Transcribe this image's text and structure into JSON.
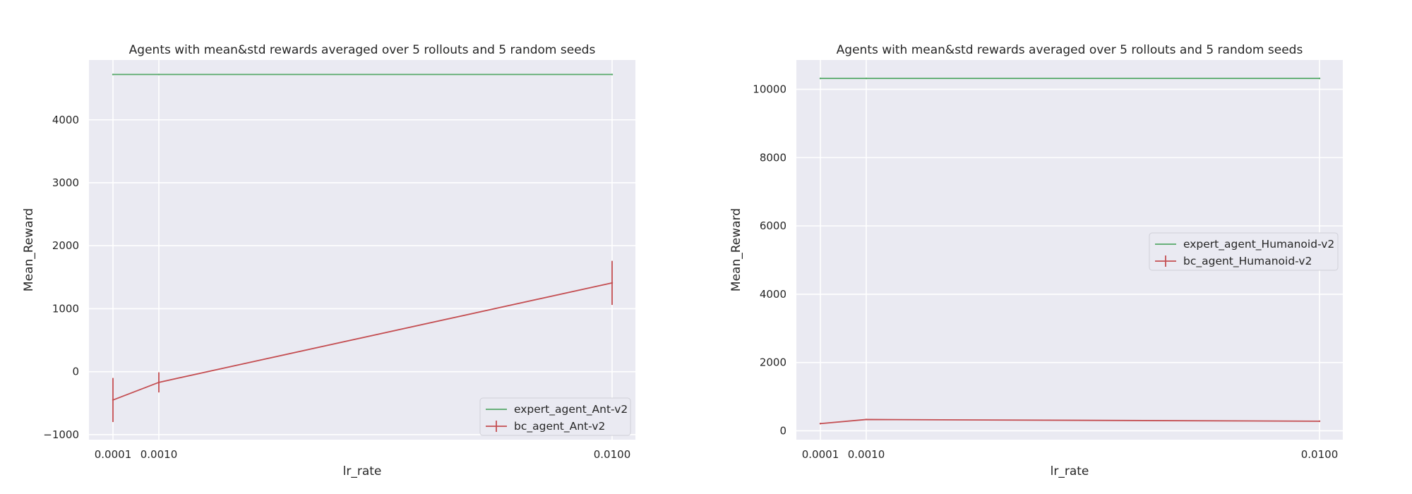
{
  "chart_data": [
    {
      "type": "line",
      "title": "Agents with mean&std rewards averaged over 5 rollouts and 5 random seeds",
      "xlabel": "lr_rate",
      "ylabel": "Mean_Reward",
      "x": [
        0.0001,
        0.001,
        0.01
      ],
      "xticks": [
        "0.0001",
        "0.0010",
        "0.0100"
      ],
      "ylim": [
        -1080,
        4950
      ],
      "yticks": [
        -1000,
        0,
        1000,
        2000,
        3000,
        4000
      ],
      "ytick_labels": [
        "−1000",
        "0",
        "1000",
        "2000",
        "3000",
        "4000"
      ],
      "grid": true,
      "legend_position": "lower right",
      "series": [
        {
          "name": "expert_agent_Ant-v2",
          "values": [
            4720,
            4720,
            4720
          ],
          "color": "#55a868"
        },
        {
          "name": "bc_agent_Ant-v2",
          "values": [
            -450,
            -170,
            1410
          ],
          "errors": [
            350,
            160,
            350
          ],
          "color": "#c44e52"
        }
      ]
    },
    {
      "type": "line",
      "title": "Agents with mean&std rewards averaged over 5 rollouts and 5 random seeds",
      "xlabel": "lr_rate",
      "ylabel": "Mean_Reward",
      "x": [
        0.0001,
        0.001,
        0.01
      ],
      "xticks": [
        "0.0001",
        "0.0010",
        "0.0100"
      ],
      "ylim": [
        -260,
        10860
      ],
      "yticks": [
        0,
        2000,
        4000,
        6000,
        8000,
        10000
      ],
      "ytick_labels": [
        "0",
        "2000",
        "4000",
        "6000",
        "8000",
        "10000"
      ],
      "grid": true,
      "legend_position": "center right",
      "series": [
        {
          "name": "expert_agent_Humanoid-v2",
          "values": [
            10320,
            10320,
            10320
          ],
          "color": "#55a868"
        },
        {
          "name": "bc_agent_Humanoid-v2",
          "values": [
            210,
            330,
            280
          ],
          "errors": [
            0,
            0,
            0
          ],
          "color": "#c44e52"
        }
      ]
    }
  ]
}
